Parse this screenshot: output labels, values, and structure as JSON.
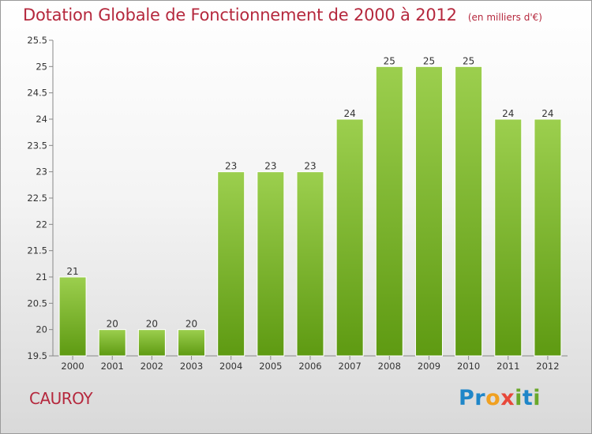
{
  "header": {
    "title": "Dotation Globale de Fonctionnement de 2000 à 2012",
    "unit": "(en milliers d'€)"
  },
  "footer": {
    "commune": "CAUROY",
    "logo_letters": [
      {
        "ch": "P",
        "color": "#1f86c8"
      },
      {
        "ch": "r",
        "color": "#1f86c8"
      },
      {
        "ch": "o",
        "color": "#f0a020"
      },
      {
        "ch": "x",
        "color": "#e8483a"
      },
      {
        "ch": "i",
        "color": "#6aa82a"
      },
      {
        "ch": "t",
        "color": "#1f86c8"
      },
      {
        "ch": "i",
        "color": "#6aa82a"
      }
    ]
  },
  "colors": {
    "bar_top": "#9ccf4e",
    "bar_bottom": "#5e9a12",
    "title": "#b5283d"
  },
  "chart_data": {
    "type": "bar",
    "title": "Dotation Globale de Fonctionnement de 2000 à 2012",
    "subtitle": "(en milliers d'€)",
    "xlabel": "",
    "ylabel": "",
    "categories": [
      "2000",
      "2001",
      "2002",
      "2003",
      "2004",
      "2005",
      "2006",
      "2007",
      "2008",
      "2009",
      "2010",
      "2011",
      "2012"
    ],
    "values": [
      21,
      20,
      20,
      20,
      23,
      23,
      23,
      24,
      25,
      25,
      25,
      24,
      24
    ],
    "value_labels": [
      "21",
      "20",
      "20",
      "20",
      "23",
      "23",
      "23",
      "24",
      "25",
      "25",
      "25",
      "24",
      "24"
    ],
    "ylim": [
      19.5,
      25.5
    ],
    "yticks": [
      19.5,
      20,
      20.5,
      21,
      21.5,
      22,
      22.5,
      23,
      23.5,
      24,
      24.5,
      25,
      25.5
    ],
    "ytick_labels": [
      "19.5",
      "20",
      "20.5",
      "21",
      "21.5",
      "22",
      "22.5",
      "23",
      "23.5",
      "24",
      "24.5",
      "25",
      "25.5"
    ],
    "grid": false,
    "legend": "none"
  }
}
